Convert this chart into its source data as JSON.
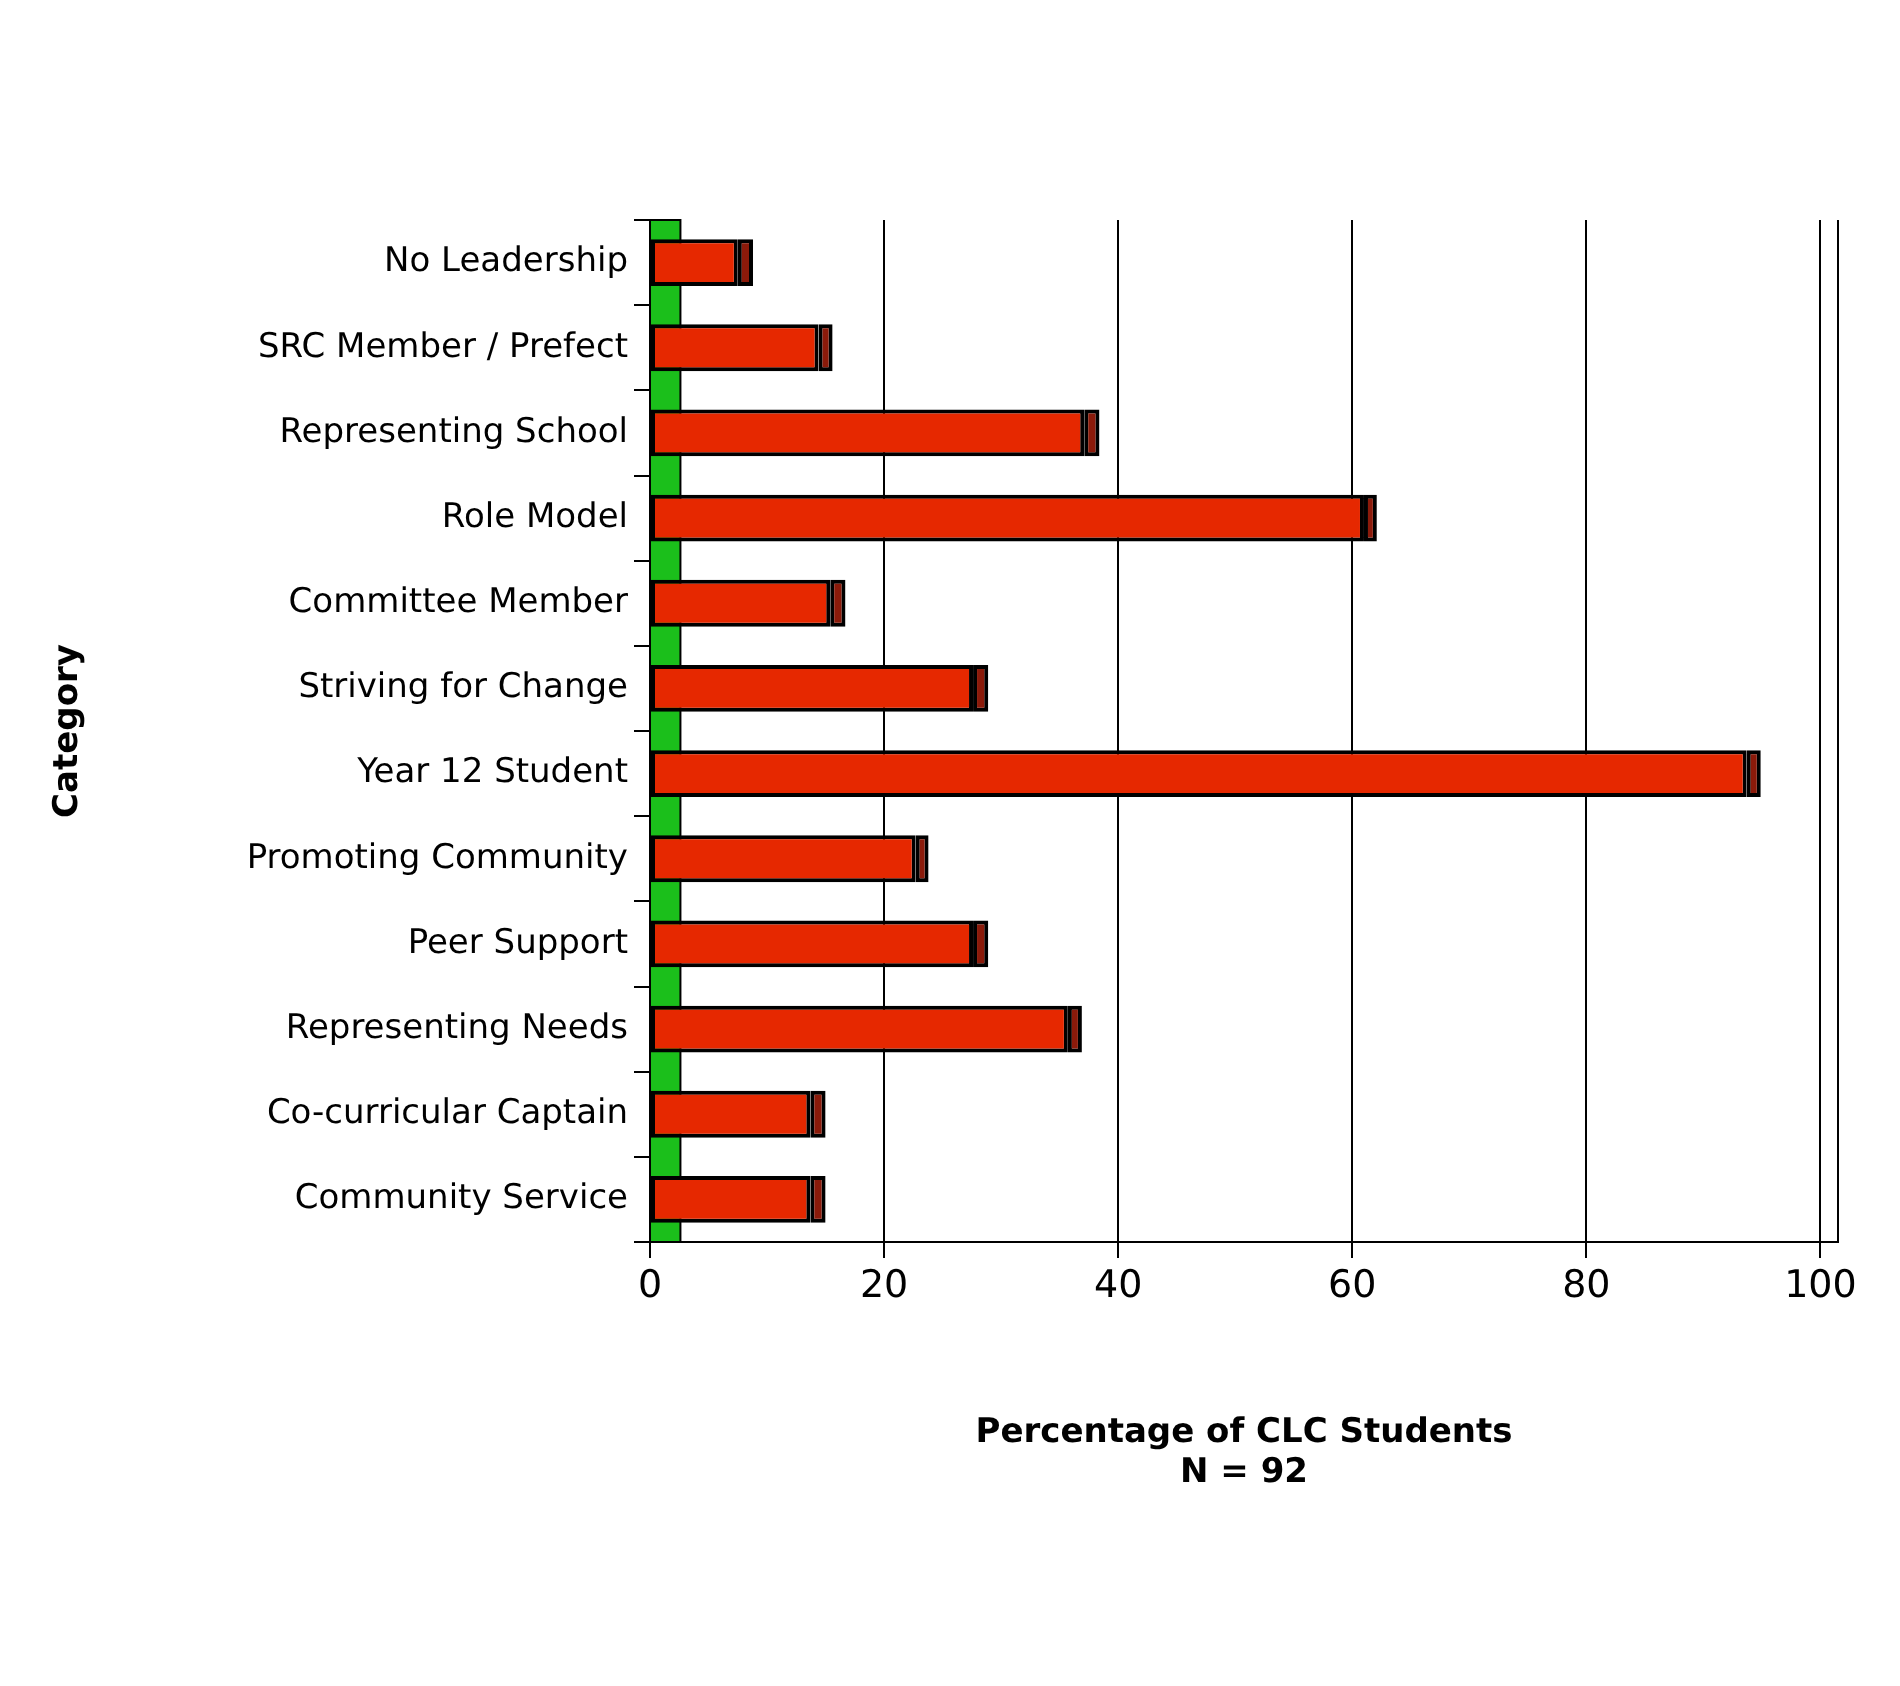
{
  "chart_data": {
    "type": "bar",
    "orientation": "horizontal",
    "stacked": true,
    "xlabel": "Percentage of CLC Students\nN = 92",
    "ylabel": "Category",
    "categories": [
      "No Leadership",
      "SRC Member / Prefect",
      "Representing School",
      "Role Model",
      "Committee Member",
      "Striving for Change",
      "Year 12 Student",
      "Promoting Community",
      "Peer Support",
      "Representing Needs",
      "Co-curricular Captain",
      "Community Service"
    ],
    "series": [
      {
        "color": "#e62800",
        "values": [
          7.5,
          14.4,
          37.1,
          61.0,
          15.4,
          27.6,
          93.7,
          22.7,
          27.6,
          35.7,
          13.7,
          13.7
        ]
      },
      {
        "color": "#8b1a0a",
        "values": [
          1.3,
          1.2,
          1.3,
          1.1,
          1.3,
          1.3,
          1.2,
          1.1,
          1.3,
          1.2,
          1.3,
          1.3
        ]
      }
    ],
    "xlim": [
      0,
      101.5
    ],
    "xticks": [
      0,
      20,
      40,
      60,
      80,
      100
    ],
    "bands": [
      {
        "axis": "x",
        "from": 0,
        "to": 2.6,
        "color": "#1bbf1b"
      }
    ],
    "grid": "x",
    "legend": false
  }
}
